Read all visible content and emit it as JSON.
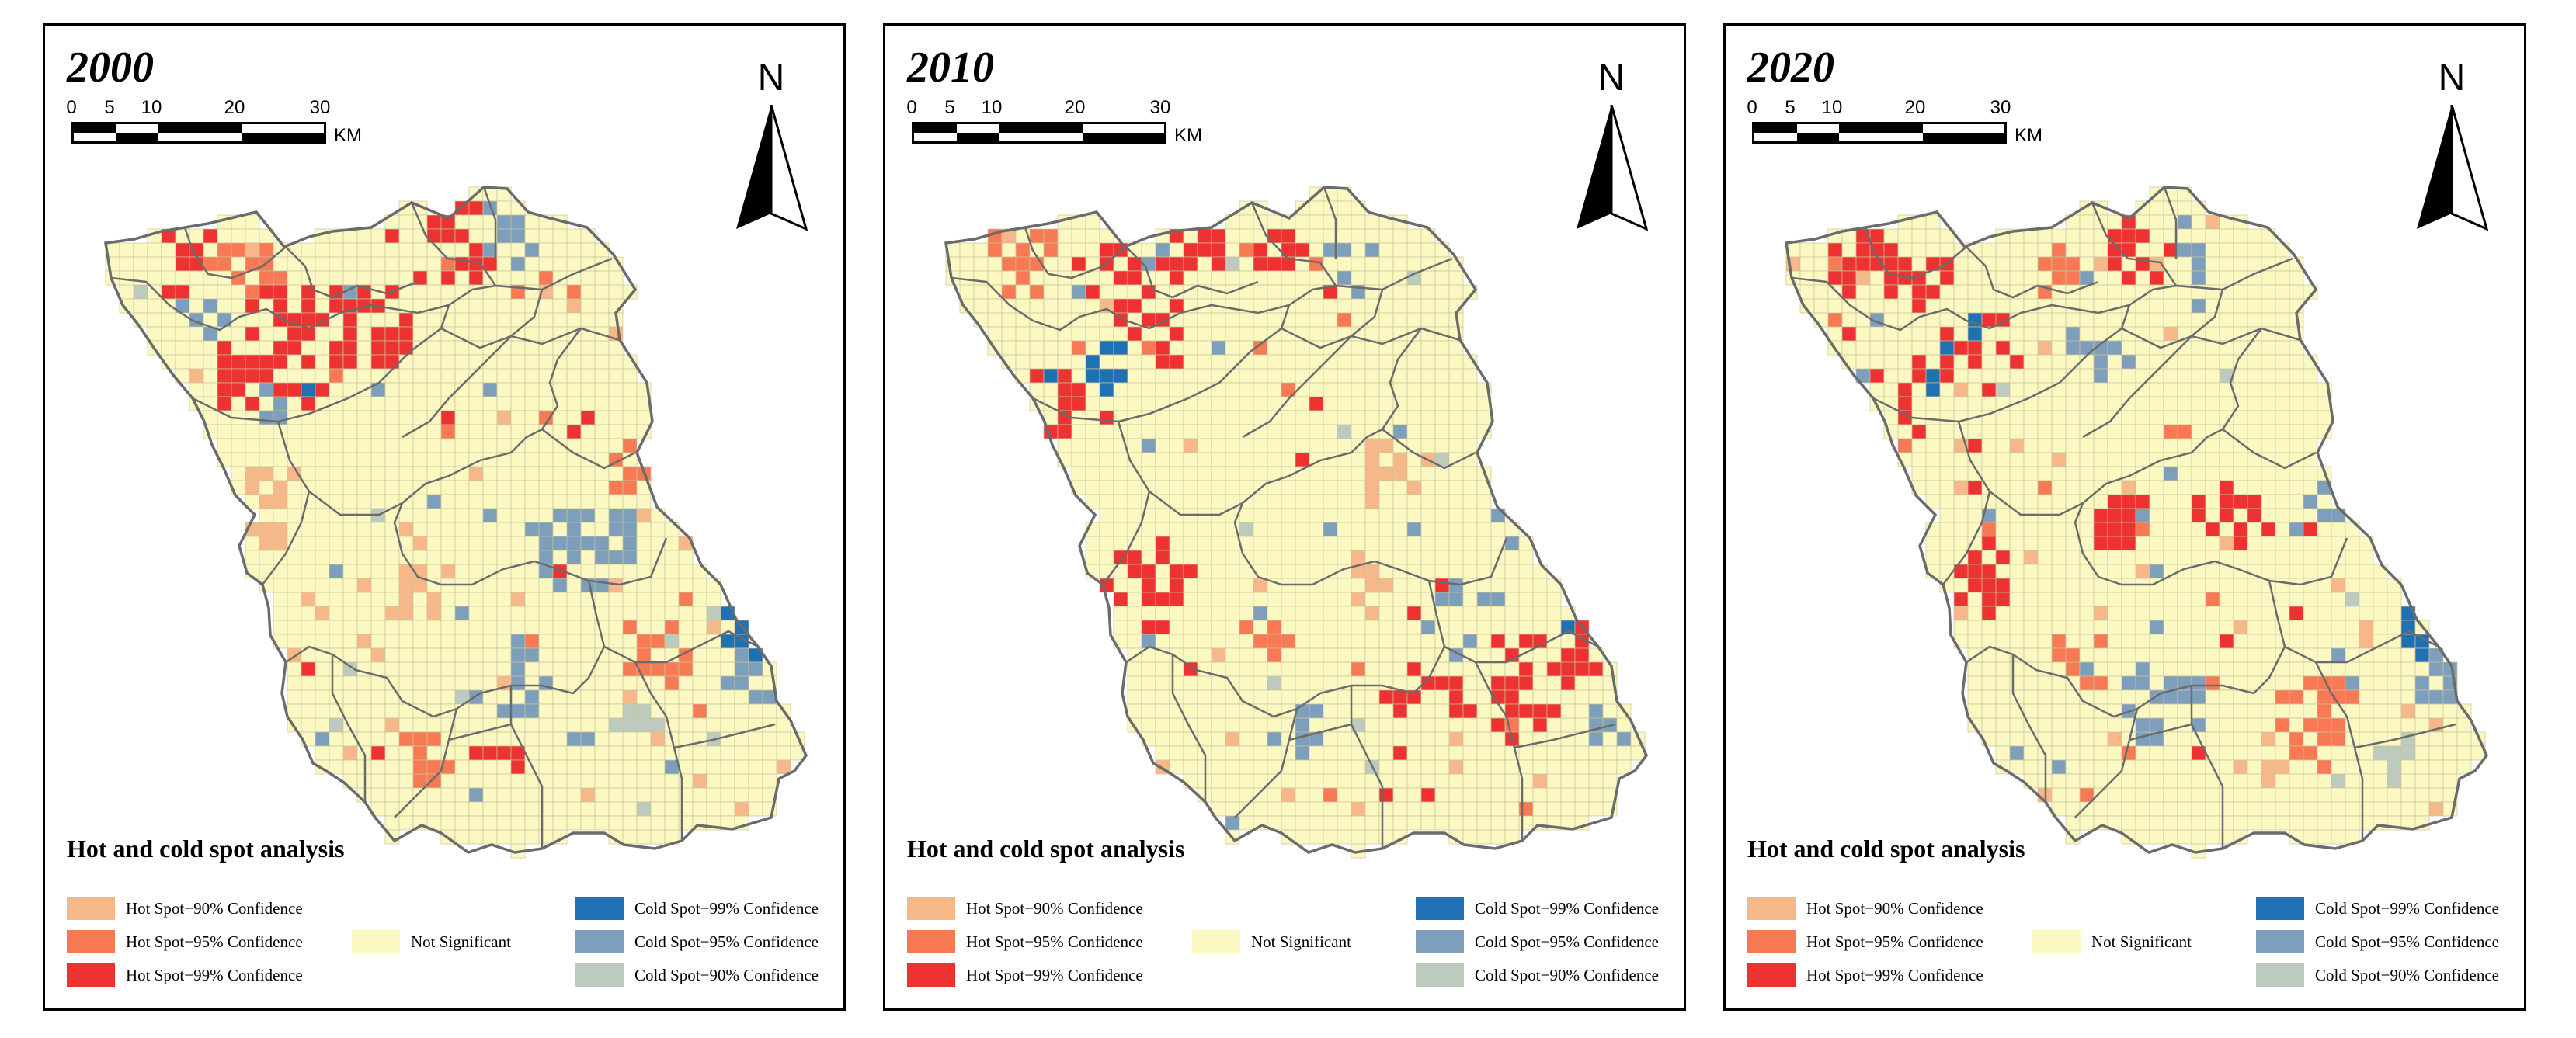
{
  "panels": [
    {
      "year": "2000",
      "legend_title": "Hot and cold spot analysis"
    },
    {
      "year": "2010",
      "legend_title": "Hot and cold spot analysis"
    },
    {
      "year": "2020",
      "legend_title": "Hot and cold spot analysis"
    }
  ],
  "scale": {
    "ticks": [
      "0",
      "5",
      "10",
      "20",
      "30"
    ],
    "unit": "KM"
  },
  "north_label": "N",
  "legend": [
    {
      "key": "hot90",
      "label": "Hot Spot−90% Confidence",
      "color": "#f7b889"
    },
    {
      "key": "hot95",
      "label": "Hot Spot−95% Confidence",
      "color": "#f77a55"
    },
    {
      "key": "hot99",
      "label": "Hot Spot−99% Confidence",
      "color": "#ee3131"
    },
    {
      "key": "ns",
      "label": "Not Significant",
      "color": "#fbf8c2"
    },
    {
      "key": "cold99",
      "label": "Cold Spot−99% Confidence",
      "color": "#2070b4"
    },
    {
      "key": "cold95",
      "label": "Cold Spot−95% Confidence",
      "color": "#7d9fbc"
    },
    {
      "key": "cold90",
      "label": "Cold Spot−90% Confidence",
      "color": "#bccbbe"
    }
  ],
  "colors": {
    "grid_line": "#c9c29a",
    "boundary": "#6b6b6b",
    "background": "#ffffff",
    "text": "#000000"
  }
}
